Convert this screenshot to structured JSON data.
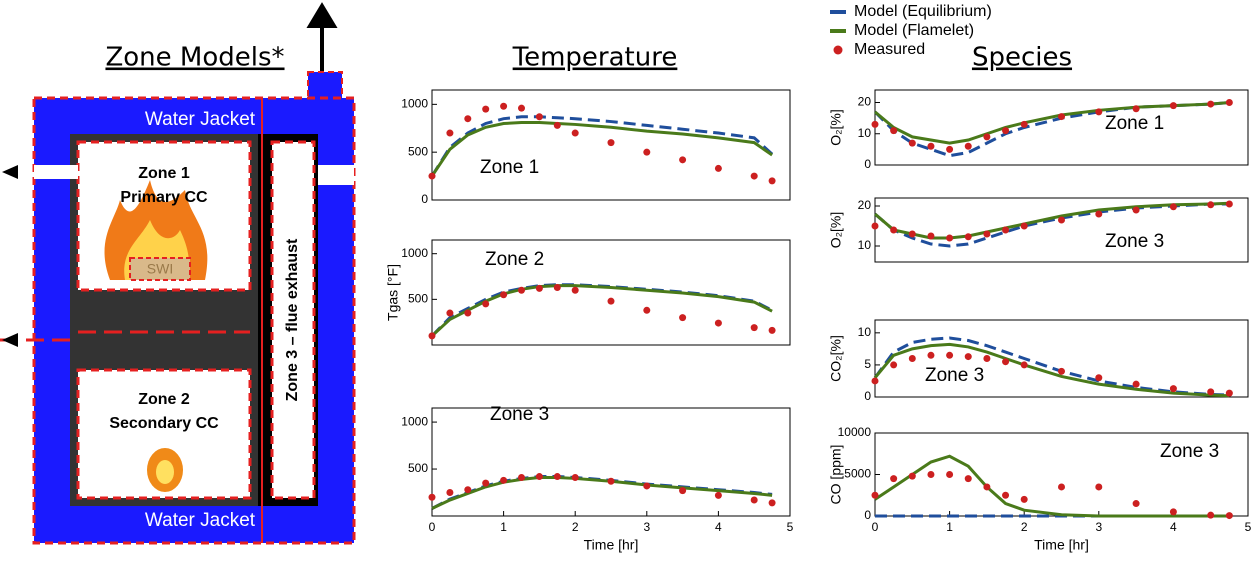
{
  "diagram": {
    "title": "Zone Models*",
    "top_label": "Water Jacket",
    "bottom_label": "Water Jacket",
    "zone1": "Zone 1",
    "zone1_sub": "Primary CC",
    "logo": "SWI",
    "zone2": "Zone 2",
    "zone2_sub": "Secondary CC",
    "zone3": "Zone 3 – flue exhaust"
  },
  "headers": {
    "temperature": "Temperature",
    "species": "Species"
  },
  "legend": [
    {
      "name": "Model (Equilibrium)",
      "color": "#1f4e9c"
    },
    {
      "name": "Model (Flamelet)",
      "color": "#4a7a1a"
    },
    {
      "name": "Measured",
      "color": "#cc2020"
    }
  ],
  "chart_data": [
    {
      "type": "line",
      "annotation": "Zone 1",
      "x": [
        0,
        0.25,
        0.5,
        0.75,
        1,
        1.25,
        1.5,
        1.75,
        2,
        2.5,
        3,
        3.5,
        4,
        4.5,
        4.75
      ],
      "xlim": [
        0,
        5
      ],
      "ylim": [
        0,
        1150
      ],
      "yticks": [
        0,
        500,
        1000
      ],
      "series": [
        {
          "style": "dashed",
          "color": "#1f4e9c",
          "values": [
            250,
            550,
            700,
            800,
            850,
            870,
            870,
            860,
            850,
            820,
            780,
            740,
            700,
            650,
            480
          ]
        },
        {
          "style": "solid",
          "color": "#4a7a1a",
          "values": [
            250,
            530,
            680,
            760,
            800,
            810,
            810,
            800,
            790,
            760,
            720,
            690,
            650,
            600,
            470
          ]
        },
        {
          "style": "markers",
          "color": "#cc2020",
          "values": [
            250,
            700,
            850,
            950,
            980,
            960,
            870,
            780,
            700,
            600,
            500,
            420,
            330,
            250,
            200
          ]
        }
      ]
    },
    {
      "type": "line",
      "annotation": "Zone 2",
      "ylabel": "Tgas [°F]",
      "x": [
        0,
        0.25,
        0.5,
        0.75,
        1,
        1.25,
        1.5,
        1.75,
        2,
        2.5,
        3,
        3.5,
        4,
        4.5,
        4.75
      ],
      "xlim": [
        0,
        5
      ],
      "ylim": [
        0,
        1150
      ],
      "yticks": [
        500,
        1000
      ],
      "series": [
        {
          "style": "dashed",
          "color": "#1f4e9c",
          "values": [
            100,
            300,
            400,
            500,
            580,
            620,
            650,
            660,
            660,
            640,
            610,
            580,
            540,
            480,
            380
          ]
        },
        {
          "style": "solid",
          "color": "#4a7a1a",
          "values": [
            100,
            280,
            380,
            480,
            560,
            610,
            640,
            650,
            650,
            630,
            600,
            570,
            530,
            470,
            370
          ]
        },
        {
          "style": "markers",
          "color": "#cc2020",
          "values": [
            100,
            350,
            350,
            450,
            550,
            600,
            620,
            630,
            600,
            480,
            380,
            300,
            240,
            190,
            160
          ]
        }
      ]
    },
    {
      "type": "line",
      "annotation": "Zone 3",
      "xlabel": "Time [hr]",
      "x": [
        0,
        0.25,
        0.5,
        0.75,
        1,
        1.25,
        1.5,
        1.75,
        2,
        2.5,
        3,
        3.5,
        4,
        4.5,
        4.75
      ],
      "xlim": [
        0,
        5
      ],
      "xticks": [
        0,
        1,
        2,
        3,
        4,
        5
      ],
      "ylim": [
        0,
        1150
      ],
      "yticks": [
        500,
        1000
      ],
      "series": [
        {
          "style": "dashed",
          "color": "#1f4e9c",
          "values": [
            80,
            180,
            250,
            320,
            370,
            400,
            420,
            420,
            410,
            380,
            340,
            310,
            280,
            250,
            230
          ]
        },
        {
          "style": "solid",
          "color": "#4a7a1a",
          "values": [
            80,
            170,
            240,
            310,
            360,
            390,
            410,
            410,
            400,
            370,
            330,
            300,
            270,
            240,
            220
          ]
        },
        {
          "style": "markers",
          "color": "#cc2020",
          "values": [
            200,
            250,
            280,
            350,
            380,
            410,
            420,
            420,
            410,
            370,
            320,
            270,
            220,
            170,
            140
          ]
        }
      ]
    },
    {
      "type": "line",
      "annotation": "Zone 1",
      "ylabel": "O₂[%]",
      "x": [
        0,
        0.25,
        0.5,
        0.75,
        1,
        1.25,
        1.5,
        1.75,
        2,
        2.5,
        3,
        3.5,
        4,
        4.5,
        4.75
      ],
      "xlim": [
        0,
        5
      ],
      "ylim": [
        0,
        24
      ],
      "yticks": [
        0,
        10,
        20
      ],
      "series": [
        {
          "style": "dashed",
          "color": "#1f4e9c",
          "values": [
            17,
            11,
            7,
            5,
            3,
            4,
            7,
            10,
            12,
            15,
            17,
            18.5,
            19,
            19.5,
            20
          ]
        },
        {
          "style": "solid",
          "color": "#4a7a1a",
          "values": [
            17,
            12,
            9,
            8,
            7,
            8,
            10,
            12,
            13.5,
            16,
            17.5,
            18.5,
            19,
            19.5,
            20
          ]
        },
        {
          "style": "markers",
          "color": "#cc2020",
          "values": [
            13,
            11,
            7,
            6,
            5,
            6,
            9,
            11,
            13,
            15.5,
            17,
            18,
            19,
            19.5,
            20
          ]
        }
      ]
    },
    {
      "type": "line",
      "annotation": "Zone 3",
      "ylabel": "O₂[%]",
      "x": [
        0,
        0.25,
        0.5,
        0.75,
        1,
        1.25,
        1.5,
        1.75,
        2,
        2.5,
        3,
        3.5,
        4,
        4.5,
        4.75
      ],
      "xlim": [
        0,
        5
      ],
      "ylim": [
        6,
        22
      ],
      "yticks": [
        10,
        20
      ],
      "series": [
        {
          "style": "dashed",
          "color": "#1f4e9c",
          "values": [
            18,
            14,
            12,
            10.5,
            10,
            10.5,
            12,
            13.5,
            15,
            17,
            18.5,
            19.5,
            20,
            20.5,
            20.5
          ]
        },
        {
          "style": "solid",
          "color": "#4a7a1a",
          "values": [
            18,
            14,
            13,
            12,
            12,
            12.5,
            13.5,
            14.5,
            15.5,
            17.5,
            19,
            19.8,
            20.3,
            20.5,
            20.7
          ]
        },
        {
          "style": "markers",
          "color": "#cc2020",
          "values": [
            15,
            14,
            13,
            12.5,
            12,
            12.3,
            13,
            14,
            15,
            16.5,
            18,
            19,
            19.8,
            20.3,
            20.5
          ]
        }
      ]
    },
    {
      "type": "line",
      "annotation": "Zone 3",
      "ylabel": "CO₂[%]",
      "x": [
        0,
        0.25,
        0.5,
        0.75,
        1,
        1.25,
        1.5,
        1.75,
        2,
        2.5,
        3,
        3.5,
        4,
        4.5,
        4.75
      ],
      "xlim": [
        0,
        5
      ],
      "ylim": [
        0,
        12
      ],
      "yticks": [
        0,
        5,
        10
      ],
      "series": [
        {
          "style": "dashed",
          "color": "#1f4e9c",
          "values": [
            3,
            7,
            8.5,
            9,
            9.2,
            8.8,
            8,
            7,
            6,
            4,
            2.5,
            1.5,
            0.8,
            0.4,
            0.3
          ]
        },
        {
          "style": "solid",
          "color": "#4a7a1a",
          "values": [
            3,
            6.5,
            7.5,
            8,
            8.2,
            7.8,
            7,
            6,
            5,
            3.2,
            2,
            1.2,
            0.6,
            0.3,
            0.2
          ]
        },
        {
          "style": "markers",
          "color": "#cc2020",
          "values": [
            2.5,
            5,
            6,
            6.5,
            6.5,
            6.3,
            6,
            5.5,
            5,
            4,
            3,
            2,
            1.3,
            0.8,
            0.6
          ]
        }
      ]
    },
    {
      "type": "line",
      "annotation": "Zone 3",
      "ylabel": "CO [ppm]",
      "xlabel": "Time [hr]",
      "x": [
        0,
        0.25,
        0.5,
        0.75,
        1,
        1.25,
        1.5,
        1.75,
        2,
        2.5,
        3,
        3.5,
        4,
        4.5,
        4.75
      ],
      "xlim": [
        0,
        5
      ],
      "xticks": [
        0,
        1,
        2,
        3,
        4,
        5
      ],
      "ylim": [
        0,
        10000
      ],
      "yticks": [
        0,
        5000,
        10000
      ],
      "series": [
        {
          "style": "dashed",
          "color": "#1f4e9c",
          "values": [
            0,
            0,
            0,
            0,
            0,
            0,
            0,
            0,
            0,
            0,
            0,
            0,
            0,
            0,
            0
          ]
        },
        {
          "style": "solid",
          "color": "#4a7a1a",
          "values": [
            2000,
            3500,
            5000,
            6500,
            7200,
            6000,
            3500,
            1500,
            700,
            150,
            0,
            0,
            0,
            0,
            0
          ]
        },
        {
          "style": "markers",
          "color": "#cc2020",
          "values": [
            2500,
            4500,
            4800,
            5000,
            5000,
            4500,
            3500,
            2500,
            2000,
            3500,
            3500,
            1500,
            500,
            100,
            50
          ]
        }
      ]
    }
  ]
}
